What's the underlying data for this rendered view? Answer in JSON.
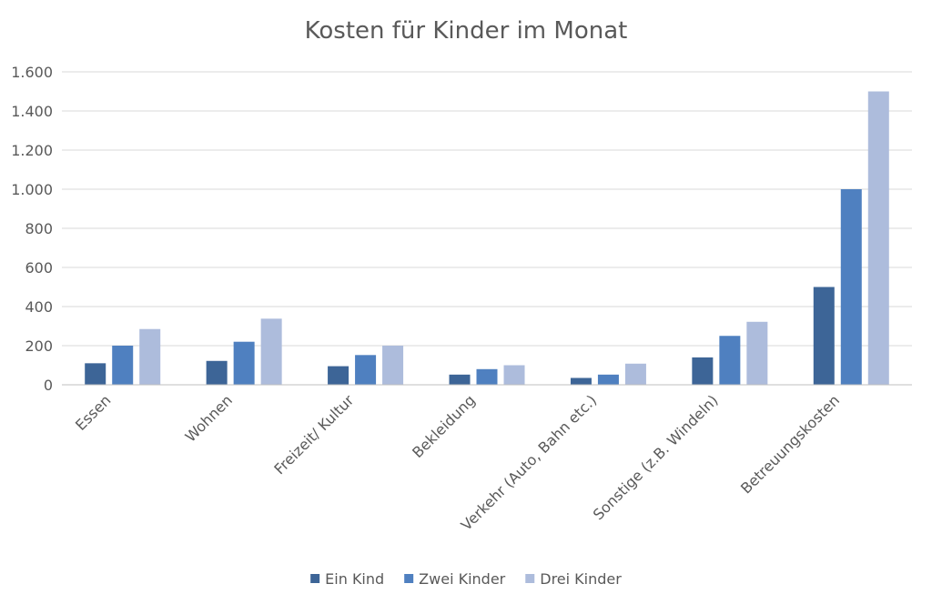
{
  "chart_data": {
    "type": "bar",
    "title": "Kosten für Kinder im Monat",
    "xlabel": "",
    "ylabel": "",
    "ylim": [
      0,
      1600
    ],
    "yticks": [
      0,
      200,
      400,
      600,
      800,
      1000,
      1200,
      1400,
      1600
    ],
    "ytick_labels": [
      "0",
      "200",
      "400",
      "600",
      "800",
      "1.000",
      "1.200",
      "1.400",
      "1.600"
    ],
    "grid": true,
    "legend_position": "bottom",
    "categories": [
      "Essen",
      "Wohnen",
      "Freizeit/ Kultur",
      "Bekleidung",
      "Verkehr (Auto, Bahn etc.)",
      "Sonstige (z.B. Windeln)",
      "Betreuungskosten"
    ],
    "series": [
      {
        "name": "Ein Kind",
        "color": "#3d6597",
        "values": [
          110,
          122,
          95,
          52,
          35,
          140,
          500
        ]
      },
      {
        "name": "Zwei Kinder",
        "color": "#4f80c0",
        "values": [
          200,
          220,
          152,
          80,
          52,
          250,
          1000
        ]
      },
      {
        "name": "Drei Kinder",
        "color": "#adbcdc",
        "values": [
          285,
          338,
          200,
          100,
          108,
          322,
          1500
        ]
      }
    ]
  }
}
